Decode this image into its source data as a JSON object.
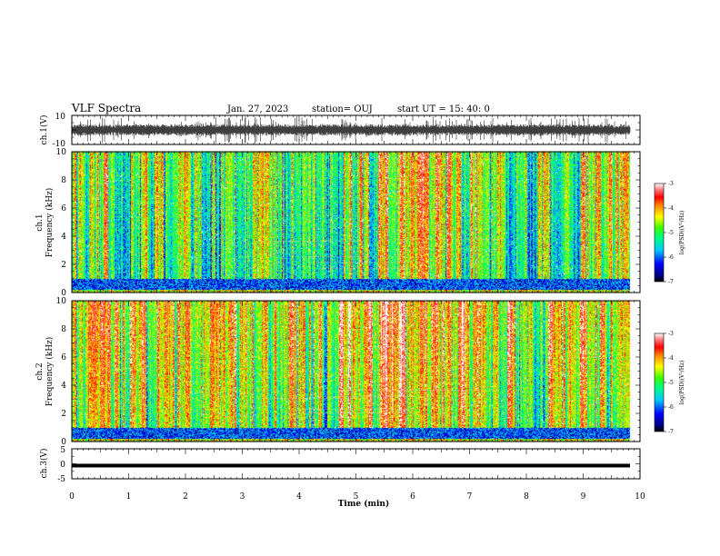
{
  "header": {
    "title": "VLF Spectra",
    "date": "Jan. 27, 2023",
    "station": "station= OUJ",
    "start": "start UT =   15: 40: 0"
  },
  "chart_data": [
    {
      "type": "line",
      "panel": "ch1-waveform",
      "ylabel": "ch.1(V)",
      "ylim": [
        -10,
        10
      ],
      "yticks": [
        "10",
        "-10"
      ],
      "xlim": [
        0,
        10
      ]
    },
    {
      "type": "heatmap",
      "panel": "ch1-spectrogram",
      "ylabel_top": "ch.1",
      "ylabel": "Frequency (kHz)",
      "ylim": [
        0,
        10
      ],
      "yticks": [
        "0",
        "2",
        "4",
        "6",
        "8",
        "10"
      ],
      "xlim": [
        0,
        10
      ],
      "colorbar": {
        "label": "log(PSD)(V²/Hz)",
        "range": [
          -7,
          -3
        ],
        "ticks": [
          "-3",
          "-4",
          "-5",
          "-6",
          "-7"
        ]
      }
    },
    {
      "type": "heatmap",
      "panel": "ch2-spectrogram",
      "ylabel_top": "ch.2",
      "ylabel": "Frequency (kHz)",
      "ylim": [
        0,
        10
      ],
      "yticks": [
        "0",
        "2",
        "4",
        "6",
        "8",
        "10"
      ],
      "xlim": [
        0,
        10
      ],
      "colorbar": {
        "label": "log(PSD)(V²/Hz)",
        "range": [
          -7,
          -3
        ],
        "ticks": [
          "-3",
          "-4",
          "-5",
          "-6",
          "-7"
        ]
      }
    },
    {
      "type": "line",
      "panel": "ch3-waveform",
      "ylabel": "ch.3(V)",
      "ylim": [
        -5,
        5
      ],
      "yticks": [
        "5",
        "0",
        "-5"
      ],
      "xlim": [
        0,
        10
      ],
      "level": -0.6
    }
  ],
  "xaxis": {
    "label": "Time (min)",
    "range": [
      0,
      10
    ],
    "ticks": [
      "0",
      "1",
      "2",
      "3",
      "4",
      "5",
      "6",
      "7",
      "8",
      "9",
      "10"
    ]
  }
}
